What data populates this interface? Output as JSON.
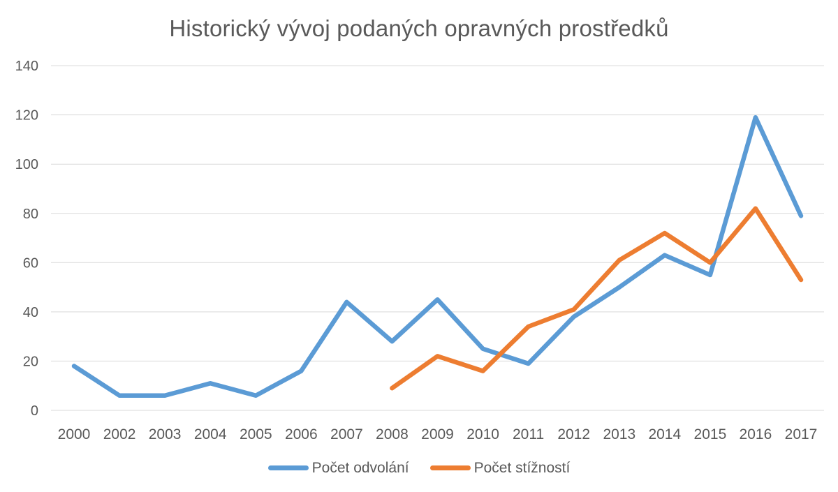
{
  "chart_data": {
    "type": "line",
    "title": "Historický vývoj podaných opravných prostředků",
    "categories": [
      "2000",
      "2002",
      "2003",
      "2004",
      "2005",
      "2006",
      "2007",
      "2008",
      "2009",
      "2010",
      "2011",
      "2012",
      "2013",
      "2014",
      "2015",
      "2016",
      "2017"
    ],
    "series": [
      {
        "name": "Počet odvolání",
        "color": "#5B9BD5",
        "values": [
          18,
          6,
          6,
          11,
          6,
          16,
          44,
          28,
          45,
          25,
          19,
          38,
          50,
          63,
          55,
          119,
          79
        ]
      },
      {
        "name": "Počet stížností",
        "color": "#ED7D31",
        "values": [
          null,
          null,
          null,
          null,
          null,
          null,
          null,
          9,
          22,
          16,
          34,
          41,
          61,
          72,
          60,
          82,
          53
        ]
      }
    ],
    "xlabel": "",
    "ylabel": "",
    "ylim": [
      0,
      140
    ],
    "ytick_step": 20,
    "grid": true,
    "legend_position": "bottom",
    "colors": {
      "grid": "#D9D9D9",
      "axis_text": "#595959",
      "title_text": "#595959",
      "background": "#FFFFFF"
    }
  }
}
